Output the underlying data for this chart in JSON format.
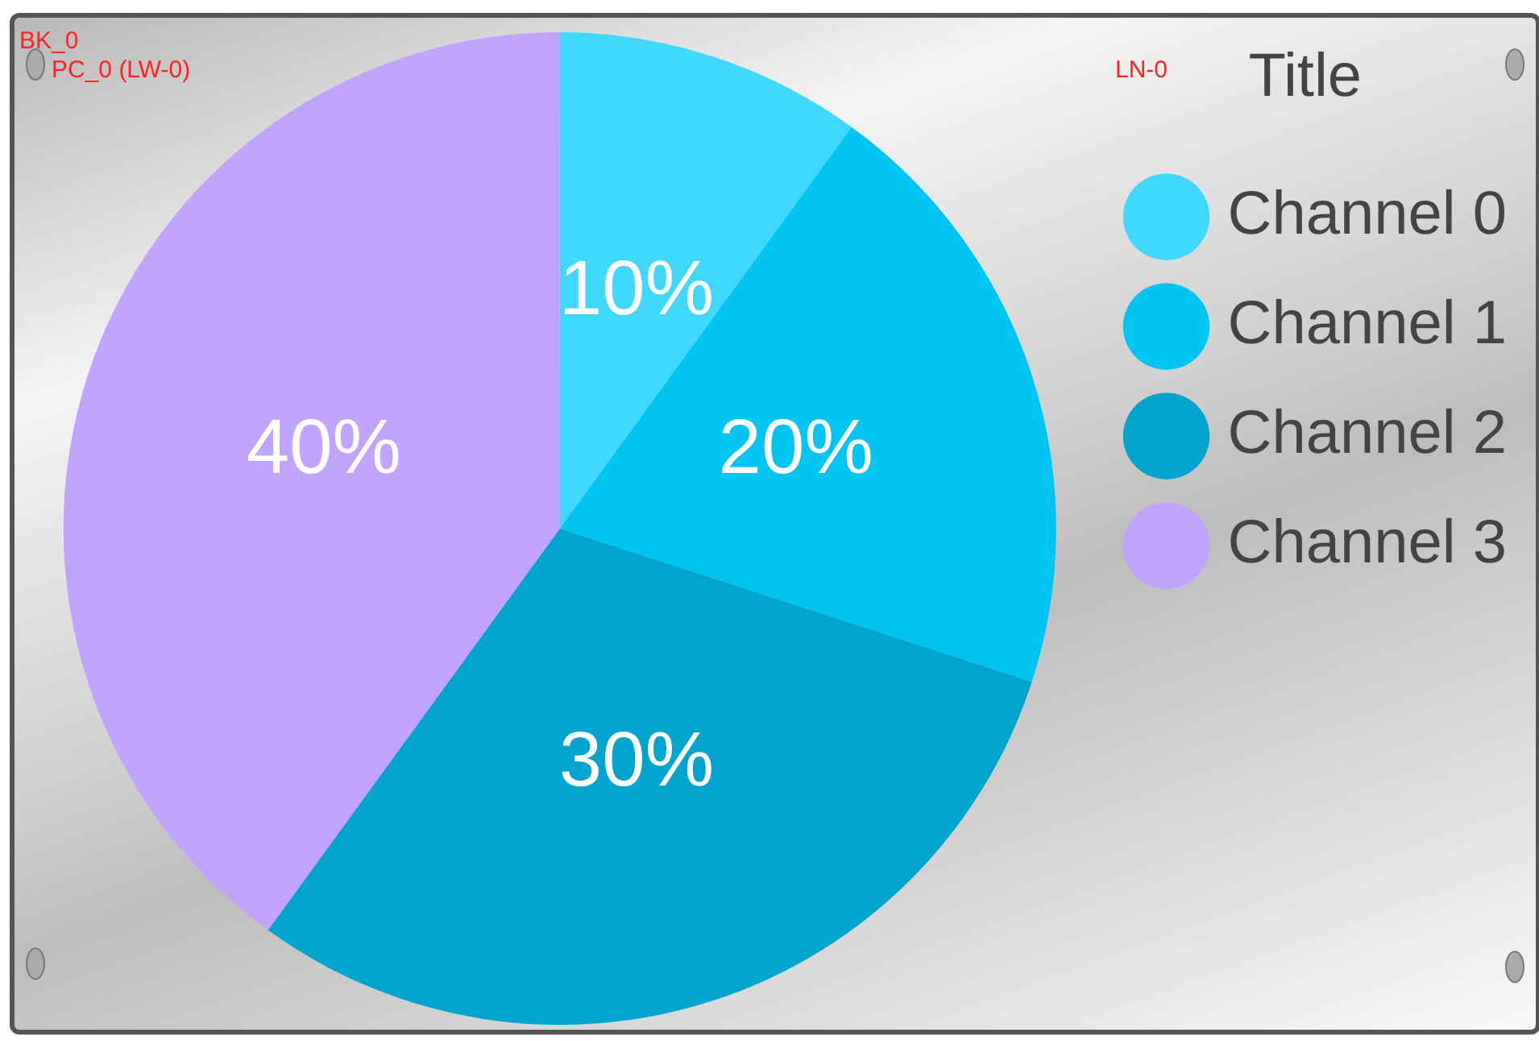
{
  "chart_data": {
    "type": "pie",
    "legend_title": "Title",
    "categories": [
      "Channel 0",
      "Channel 1",
      "Channel 2",
      "Channel 3"
    ],
    "values": [
      10,
      20,
      30,
      40
    ],
    "value_labels": [
      "10%",
      "20%",
      "30%",
      "40%"
    ],
    "colors": [
      "#40d8ff",
      "#00c4f2",
      "#00a4cc",
      "#c0a4ff"
    ],
    "legend": "right",
    "annotations": [
      "BK_0",
      "PC_0 (LW-0)",
      "LN-0"
    ]
  }
}
